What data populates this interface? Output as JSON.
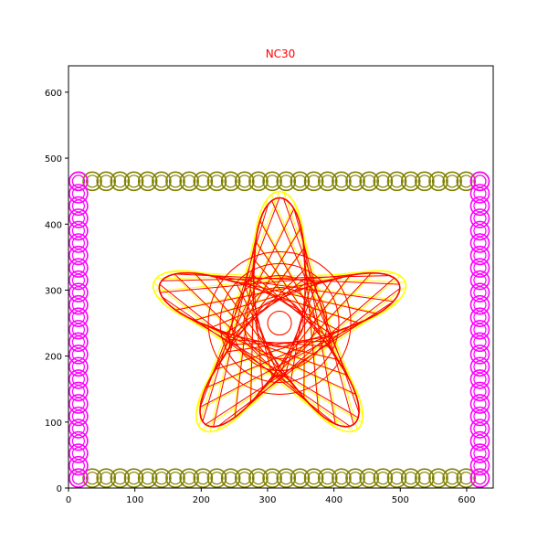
{
  "chart_data": {
    "type": "scatter",
    "title": "NC30",
    "title_color": "#ff0000",
    "xlabel": "",
    "ylabel": "",
    "xlim": [
      0,
      640
    ],
    "ylim": [
      0,
      640
    ],
    "xticks": [
      "0",
      "100",
      "200",
      "300",
      "400",
      "500",
      "600"
    ],
    "yticks": [
      "0",
      "100",
      "200",
      "300",
      "400",
      "500",
      "600"
    ],
    "grid": false,
    "legend": "none",
    "series": [
      {
        "color": "#808000",
        "marker": "circle",
        "points": [
          {
            "x_start": 15,
            "x_end": 620,
            "y": 15,
            "count": 30
          },
          {
            "x_start": 15,
            "x_end": 620,
            "y": 465,
            "count": 30
          }
        ]
      },
      {
        "color": "#ff00ff",
        "marker": "circle",
        "points": [
          {
            "x": 15,
            "y_start": 15,
            "y_end": 465,
            "count": 25
          },
          {
            "x": 620,
            "y_start": 15,
            "y_end": 465,
            "count": 25
          }
        ]
      },
      {
        "color": "#ffff00",
        "marker": "line",
        "shape": "star",
        "center": [
          318,
          250
        ],
        "arms": 5,
        "outer_radius": 190,
        "inner_radius": 80
      },
      {
        "color": "#ff0000",
        "marker": "line",
        "shape": "star",
        "center": [
          318,
          250
        ],
        "arms": 5,
        "outer_radius": 190,
        "inner_radius": 80
      }
    ]
  }
}
